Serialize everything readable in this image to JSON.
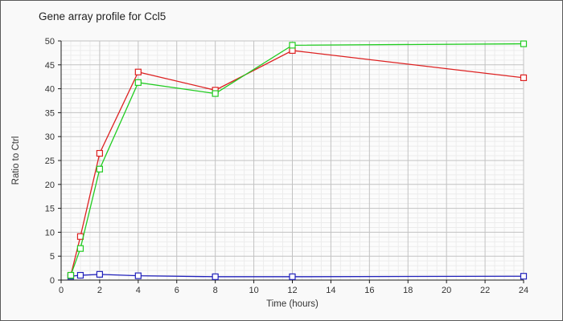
{
  "window": {
    "background": "#f9f9f9",
    "border_color": "#5a5a5a"
  },
  "chart_data": {
    "type": "line",
    "title": "Gene array profile for Ccl5",
    "xlabel": "Time (hours)",
    "ylabel": "Ratio to Ctrl",
    "xlim": [
      0,
      24
    ],
    "ylim": [
      0,
      50
    ],
    "x_ticks": [
      0,
      2,
      4,
      6,
      8,
      10,
      12,
      14,
      16,
      18,
      20,
      22,
      24
    ],
    "y_ticks": [
      0,
      5,
      10,
      15,
      20,
      25,
      30,
      35,
      40,
      45,
      50
    ],
    "x_minor_step": 0.5,
    "y_minor_step": 1,
    "grid": true,
    "legend": "none",
    "x": [
      0.5,
      1,
      2,
      4,
      8,
      12,
      24
    ],
    "series": [
      {
        "name": "red-series",
        "color": "#dd2020",
        "marker": "open-square",
        "values": [
          1.0,
          9.1,
          26.5,
          43.5,
          39.7,
          48.0,
          42.3
        ]
      },
      {
        "name": "blue-series",
        "color": "#2121bb",
        "marker": "open-square",
        "values": [
          0.8,
          1.0,
          1.2,
          0.9,
          0.7,
          0.7,
          0.8
        ]
      },
      {
        "name": "green-series",
        "color": "#21cc21",
        "marker": "open-square",
        "values": [
          1.0,
          6.6,
          23.2,
          41.3,
          39.0,
          49.1,
          49.4
        ]
      }
    ],
    "colors": {
      "plot_bg": "#fcfcfc",
      "minor_grid": "#ececec",
      "major_grid": "#c2c2c2",
      "axis": "#1a1a1a",
      "tick_label": "#333333",
      "axis_label": "#333333",
      "title": "#222222"
    }
  }
}
